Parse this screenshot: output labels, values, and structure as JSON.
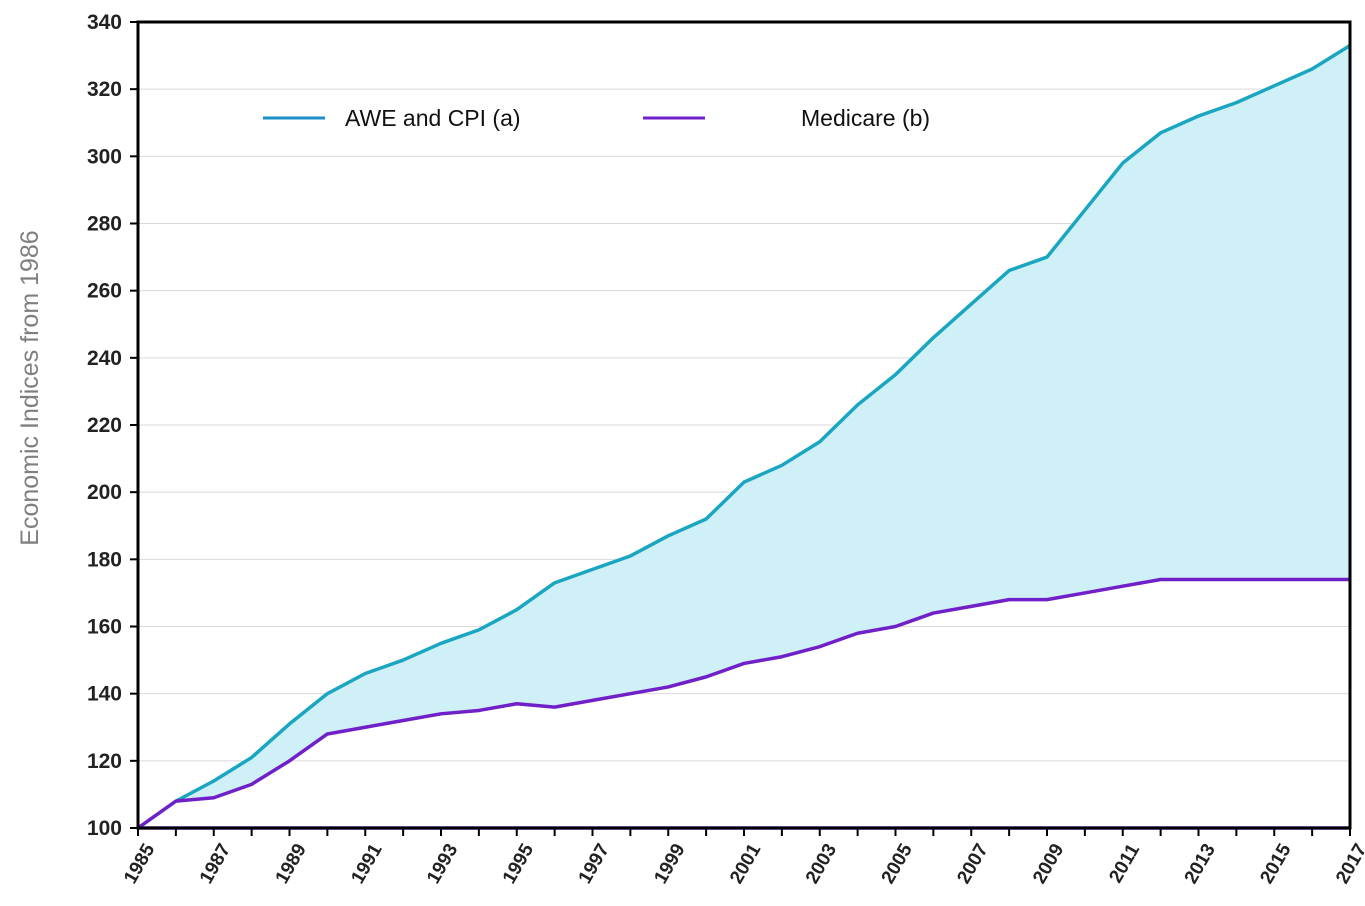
{
  "chart_data": {
    "type": "area",
    "ylabel": "Economic Indices from 1986",
    "xlim": [
      1985,
      2017
    ],
    "ylim": [
      100,
      340
    ],
    "y_ticks": [
      100,
      120,
      140,
      160,
      180,
      200,
      220,
      240,
      260,
      280,
      300,
      320,
      340
    ],
    "x_ticks": [
      1985,
      1987,
      1989,
      1991,
      1993,
      1995,
      1997,
      1999,
      2001,
      2003,
      2005,
      2007,
      2009,
      2011,
      2013,
      2015,
      2017
    ],
    "x": [
      1985,
      1986,
      1987,
      1988,
      1989,
      1990,
      1991,
      1992,
      1993,
      1994,
      1995,
      1996,
      1997,
      1998,
      1999,
      2000,
      2001,
      2002,
      2003,
      2004,
      2005,
      2006,
      2007,
      2008,
      2009,
      2010,
      2011,
      2012,
      2013,
      2014,
      2015,
      2016,
      2017
    ],
    "series": [
      {
        "name": "AWE and CPI (a)",
        "color": "#1aa6c0",
        "values": [
          100,
          108,
          114,
          121,
          131,
          140,
          146,
          150,
          155,
          159,
          165,
          173,
          177,
          181,
          187,
          192,
          203,
          208,
          215,
          226,
          235,
          246,
          256,
          266,
          270,
          284,
          298,
          307,
          312,
          316,
          321,
          326,
          333
        ]
      },
      {
        "name": "Medicare (b)",
        "color": "#7020c8",
        "values": [
          100,
          108,
          109,
          113,
          120,
          128,
          130,
          132,
          134,
          135,
          137,
          136,
          138,
          140,
          142,
          145,
          149,
          151,
          154,
          158,
          160,
          164,
          166,
          168,
          168,
          170,
          172,
          174,
          174,
          174,
          174,
          174,
          174
        ]
      }
    ],
    "baseline": 100,
    "fill_color": "#cff0f7",
    "grid": true,
    "legend_position": "top-left"
  }
}
